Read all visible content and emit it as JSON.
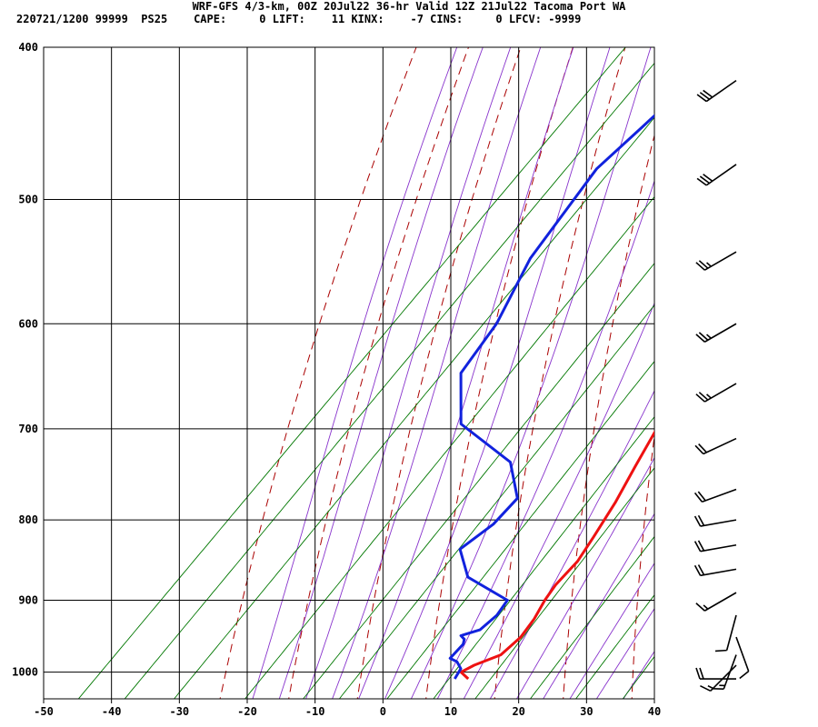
{
  "header": {
    "line1": "WRF-GFS 4/3-km, 00Z 20Jul22 36-hr Valid 12Z 21Jul22 Tacoma Port WA",
    "line2": "220721/1200 99999  PS25    CAPE:     0 LIFT:    11 KINX:    -7 CINS:     0 LFCV: -9999"
  },
  "colors": {
    "temperature": "#ee1111",
    "dewpoint": "#1122dd",
    "isotherm": "#000000",
    "dry_adiabat": "#aa0000",
    "moist_adiabat": "#8833cc",
    "mixing_ratio": "#007700",
    "wind_barb": "#000000"
  },
  "chart_data": {
    "type": "line",
    "title": "",
    "xlabel": "",
    "ylabel": "",
    "x_ticks": [
      "-50",
      "-40",
      "-30",
      "-20",
      "-10",
      "0",
      "10",
      "20",
      "30",
      "40"
    ],
    "xlim": [
      -50,
      40
    ],
    "y_ticks": [
      "400",
      "500",
      "600",
      "700",
      "800",
      "900",
      "1000"
    ],
    "ylim_pressure_hpa": [
      1040,
      400
    ],
    "y_scale": "log",
    "grid": true,
    "series": [
      {
        "role": "temperature",
        "x": [
          13.5,
          11.5,
          12.5,
          15,
          15.5,
          15,
          14,
          13.5,
          13.5,
          12.5,
          11,
          9,
          7,
          4.5,
          0,
          -5,
          -10,
          -15,
          -20
        ],
        "y": [
          1010,
          1000,
          990,
          975,
          950,
          925,
          900,
          880,
          850,
          820,
          780,
          740,
          700,
          650,
          600,
          550,
          500,
          460,
          425
        ]
      },
      {
        "role": "dewpoint",
        "x": [
          11.5,
          11,
          9.5,
          8,
          8,
          7.5,
          6.5,
          8.5,
          9,
          8.5,
          -0.5,
          -5.5,
          -4,
          -4,
          -10,
          -22.5,
          -29.5,
          -31,
          -35,
          -37.5,
          -36.5,
          -35.5
        ],
        "y": [
          1010,
          995,
          985,
          980,
          960,
          953,
          948,
          940,
          920,
          900,
          870,
          835,
          805,
          775,
          735,
          695,
          645,
          600,
          545,
          478,
          450,
          420
        ]
      }
    ],
    "wind_barbs": [
      {
        "p": 420,
        "dir": 235,
        "kt": 30
      },
      {
        "p": 475,
        "dir": 235,
        "kt": 30
      },
      {
        "p": 540,
        "dir": 240,
        "kt": 25
      },
      {
        "p": 600,
        "dir": 240,
        "kt": 25
      },
      {
        "p": 655,
        "dir": 240,
        "kt": 25
      },
      {
        "p": 710,
        "dir": 245,
        "kt": 20
      },
      {
        "p": 765,
        "dir": 250,
        "kt": 20
      },
      {
        "p": 800,
        "dir": 260,
        "kt": 20
      },
      {
        "p": 830,
        "dir": 260,
        "kt": 20
      },
      {
        "p": 860,
        "dir": 260,
        "kt": 20
      },
      {
        "p": 890,
        "dir": 240,
        "kt": 15
      },
      {
        "p": 920,
        "dir": 195,
        "kt": 10
      },
      {
        "p": 950,
        "dir": 160,
        "kt": 10
      },
      {
        "p": 975,
        "dir": 200,
        "kt": 15
      },
      {
        "p": 990,
        "dir": 225,
        "kt": 15
      },
      {
        "p": 1010,
        "dir": 270,
        "kt": 20
      }
    ]
  }
}
